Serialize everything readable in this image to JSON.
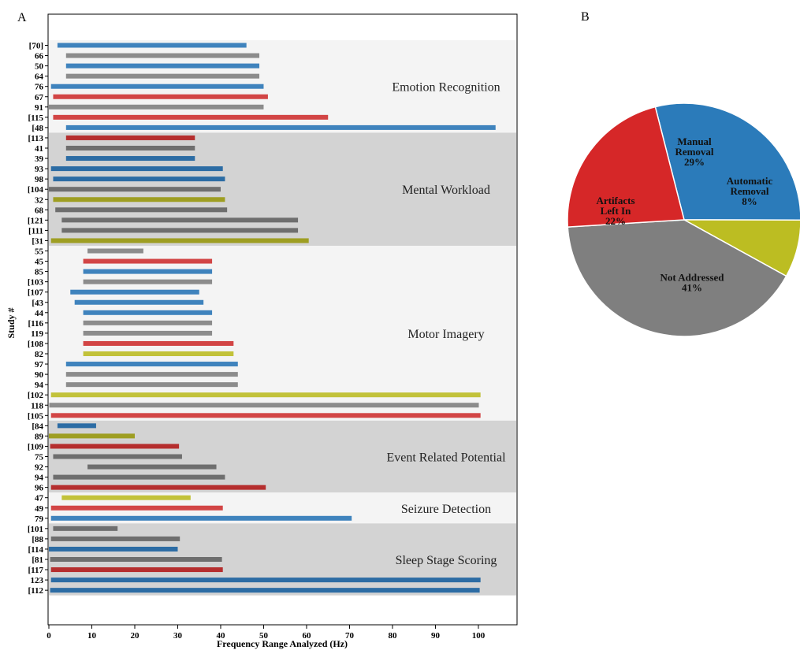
{
  "panels": {
    "a": "A",
    "b": "B"
  },
  "colors": {
    "blue": "#3f83bd",
    "gray": "#8c8c8c",
    "red": "#d24545",
    "olive": "#c2c23a",
    "dblue": "#2c6ca4",
    "dgray": "#6e6e6e",
    "dred": "#b52e2e",
    "dolive": "#9e9e22",
    "band_light": "#f4f4f4",
    "band_dark": "#d3d3d3"
  },
  "chart_data": [
    {
      "type": "bar",
      "orientation": "horizontal",
      "xlabel": "Frequency Range Analyzed (Hz)",
      "ylabel": "Study #",
      "xlim": [
        0,
        109
      ],
      "xticks": [
        0,
        10,
        20,
        30,
        40,
        50,
        60,
        70,
        80,
        90,
        100
      ],
      "groups": [
        {
          "label": "Emotion Recognition",
          "band": "band_light",
          "bars": [
            {
              "study": "[70]",
              "low": 2,
              "high": 46,
              "color": "blue"
            },
            {
              "study": "66",
              "low": 4,
              "high": 49,
              "color": "gray"
            },
            {
              "study": "50",
              "low": 4,
              "high": 49,
              "color": "blue"
            },
            {
              "study": "64",
              "low": 4,
              "high": 49,
              "color": "gray"
            },
            {
              "study": "76",
              "low": 0.5,
              "high": 50,
              "color": "blue"
            },
            {
              "study": "67",
              "low": 1,
              "high": 51,
              "color": "red"
            },
            {
              "study": "91",
              "low": 0,
              "high": 50,
              "color": "gray"
            },
            {
              "study": "[115",
              "low": 1,
              "high": 65,
              "color": "red"
            },
            {
              "study": "[48",
              "low": 4,
              "high": 104,
              "color": "blue"
            }
          ]
        },
        {
          "label": "Mental Workload",
          "band": "band_dark",
          "bars": [
            {
              "study": "[113",
              "low": 4,
              "high": 34,
              "color": "dred"
            },
            {
              "study": "41",
              "low": 4,
              "high": 34,
              "color": "dgray"
            },
            {
              "study": "39",
              "low": 4,
              "high": 34,
              "color": "dblue"
            },
            {
              "study": "93",
              "low": 0.5,
              "high": 40.5,
              "color": "dblue"
            },
            {
              "study": "98",
              "low": 1,
              "high": 41,
              "color": "dblue"
            },
            {
              "study": "[104",
              "low": 0,
              "high": 40,
              "color": "dgray"
            },
            {
              "study": "32",
              "low": 1,
              "high": 41,
              "color": "dolive"
            },
            {
              "study": "68",
              "low": 1.5,
              "high": 41.5,
              "color": "dgray"
            },
            {
              "study": "[121",
              "low": 3,
              "high": 58,
              "color": "dgray"
            },
            {
              "study": "[111",
              "low": 3,
              "high": 58,
              "color": "dgray"
            },
            {
              "study": "[31",
              "low": 0.5,
              "high": 60.5,
              "color": "dolive"
            }
          ]
        },
        {
          "label": "Motor Imagery",
          "band": "band_light",
          "bars": [
            {
              "study": "55",
              "low": 9,
              "high": 22,
              "color": "gray"
            },
            {
              "study": "45",
              "low": 8,
              "high": 38,
              "color": "red"
            },
            {
              "study": "85",
              "low": 8,
              "high": 38,
              "color": "blue"
            },
            {
              "study": "[103",
              "low": 8,
              "high": 38,
              "color": "gray"
            },
            {
              "study": "[107",
              "low": 5,
              "high": 35,
              "color": "blue"
            },
            {
              "study": "[43",
              "low": 6,
              "high": 36,
              "color": "blue"
            },
            {
              "study": "44",
              "low": 8,
              "high": 38,
              "color": "blue"
            },
            {
              "study": "[116",
              "low": 8,
              "high": 38,
              "color": "gray"
            },
            {
              "study": "119",
              "low": 8,
              "high": 38,
              "color": "gray"
            },
            {
              "study": "[108",
              "low": 8,
              "high": 43,
              "color": "red"
            },
            {
              "study": "82",
              "low": 8,
              "high": 43,
              "color": "olive"
            },
            {
              "study": "97",
              "low": 4,
              "high": 44,
              "color": "blue"
            },
            {
              "study": "90",
              "low": 4,
              "high": 44,
              "color": "gray"
            },
            {
              "study": "94",
              "low": 4,
              "high": 44,
              "color": "gray"
            },
            {
              "study": "[102",
              "low": 0.5,
              "high": 100.5,
              "color": "olive"
            },
            {
              "study": "118",
              "low": 0.1,
              "high": 100.1,
              "color": "gray"
            },
            {
              "study": "[105",
              "low": 0.5,
              "high": 100.5,
              "color": "red"
            }
          ]
        },
        {
          "label": "Event Related Potential",
          "band": "band_dark",
          "bars": [
            {
              "study": "[84",
              "low": 2,
              "high": 11,
              "color": "dblue"
            },
            {
              "study": "89",
              "low": 0,
              "high": 20,
              "color": "dolive"
            },
            {
              "study": "[109",
              "low": 0.3,
              "high": 30.3,
              "color": "dred"
            },
            {
              "study": "75",
              "low": 1,
              "high": 31,
              "color": "dgray"
            },
            {
              "study": "92",
              "low": 9,
              "high": 39,
              "color": "dgray"
            },
            {
              "study": "94",
              "low": 1,
              "high": 41,
              "color": "dgray"
            },
            {
              "study": "96",
              "low": 0.5,
              "high": 50.5,
              "color": "dred"
            }
          ]
        },
        {
          "label": "Seizure Detection",
          "band": "band_light",
          "bars": [
            {
              "study": "47",
              "low": 3,
              "high": 33,
              "color": "olive"
            },
            {
              "study": "49",
              "low": 0.5,
              "high": 40.5,
              "color": "red"
            },
            {
              "study": "79",
              "low": 0.5,
              "high": 70.5,
              "color": "blue"
            }
          ]
        },
        {
          "label": "Sleep Stage Scoring",
          "band": "band_dark",
          "bars": [
            {
              "study": "[101",
              "low": 1,
              "high": 16,
              "color": "dgray"
            },
            {
              "study": "[88",
              "low": 0.5,
              "high": 30.5,
              "color": "dgray"
            },
            {
              "study": "[114",
              "low": 0,
              "high": 30,
              "color": "dblue"
            },
            {
              "study": "[81",
              "low": 0.3,
              "high": 40.3,
              "color": "dgray"
            },
            {
              "study": "[117",
              "low": 0.5,
              "high": 40.5,
              "color": "dred"
            },
            {
              "study": "123",
              "low": 0.5,
              "high": 100.5,
              "color": "dblue"
            },
            {
              "study": "[112",
              "low": 0.3,
              "high": 100.3,
              "color": "dblue"
            }
          ]
        }
      ]
    },
    {
      "type": "pie",
      "slices": [
        {
          "label": [
            "Manual",
            "Removal",
            "29%"
          ],
          "value": 29,
          "color": "#2b7bba"
        },
        {
          "label": [
            "Automatic",
            "Removal",
            "8%"
          ],
          "value": 8,
          "color": "#bcbd22"
        },
        {
          "label": [
            "Not Addressed",
            "41%"
          ],
          "value": 41,
          "color": "#7f7f7f"
        },
        {
          "label": [
            "Artifacts",
            "Left In",
            "22%"
          ],
          "value": 22,
          "color": "#d62728"
        }
      ]
    }
  ]
}
